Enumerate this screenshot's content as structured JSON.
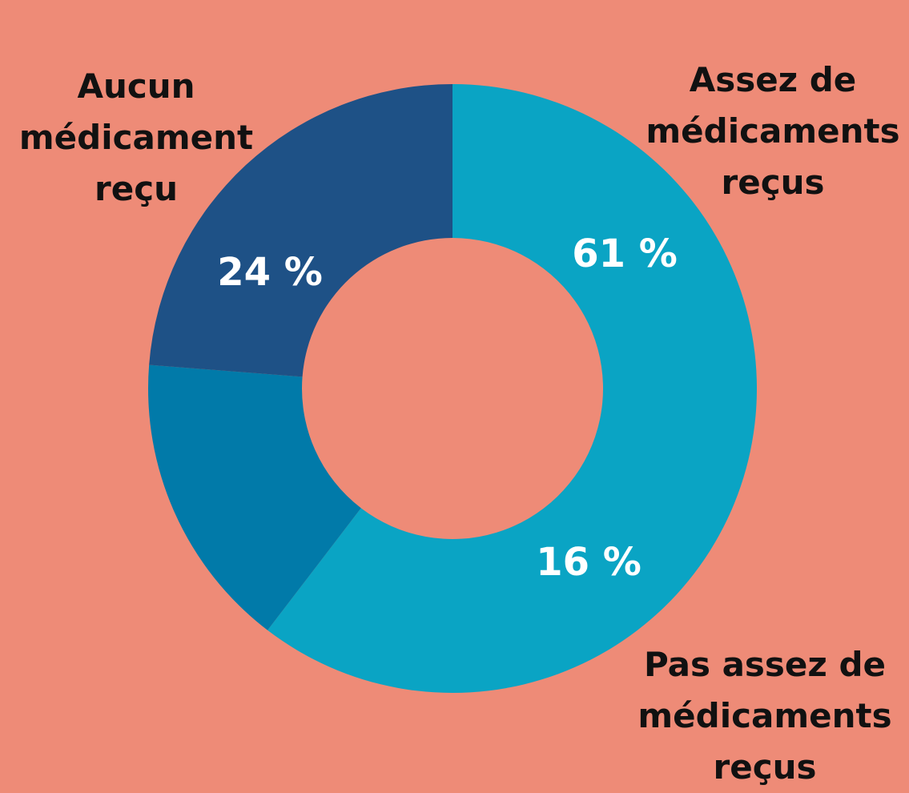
{
  "chart_data": {
    "type": "donut",
    "categories": [
      "Assez de médicaments reçus",
      "Pas assez de médicaments reçus",
      "Aucun médicament reçu"
    ],
    "values": [
      61,
      16,
      24
    ],
    "value_labels": [
      "61 %",
      "16 %",
      "24 %"
    ],
    "colors": [
      "#0aa4c4",
      "#017aa9",
      "#1e5186"
    ]
  }
}
